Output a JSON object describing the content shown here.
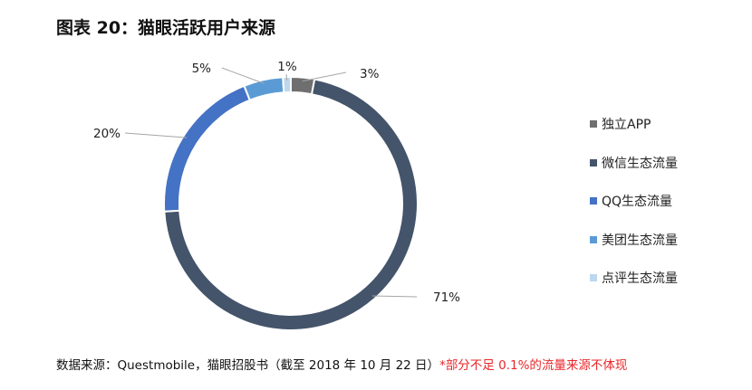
{
  "title": "图表 20：猫眼活跃用户来源",
  "chart_data": {
    "type": "pie",
    "style": "donut",
    "categories": [
      "独立APP",
      "微信生态流量",
      "QQ生态流量",
      "美团生态流量",
      "点评生态流量"
    ],
    "values": [
      3,
      71,
      20,
      5,
      1
    ],
    "data_labels": [
      "3%",
      "71%",
      "20%",
      "5%",
      "1%"
    ],
    "colors": [
      "#6f6f6f",
      "#44546a",
      "#4472c4",
      "#5b9bd5",
      "#bdd7ee"
    ],
    "legend_position": "right"
  },
  "legend": [
    {
      "label": "独立APP",
      "color": "#6f6f6f"
    },
    {
      "label": "微信生态流量",
      "color": "#44546a"
    },
    {
      "label": "QQ生态流量",
      "color": "#4472c4"
    },
    {
      "label": "美团生态流量",
      "color": "#5b9bd5"
    },
    {
      "label": "点评生态流量",
      "color": "#bdd7ee"
    }
  ],
  "footer": {
    "source": "数据来源：Questmobile，猫眼招股书（截至 2018 年 10 月 22 日）",
    "note": "*部分不足 0.1%的流量来源不体现"
  }
}
